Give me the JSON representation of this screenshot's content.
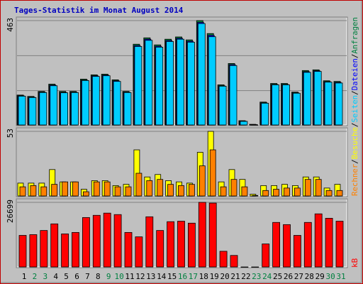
{
  "chart_data": [
    {
      "type": "bar",
      "title": "Tages-Statistik im Monat August 2014",
      "categories": [
        "1",
        "2",
        "3",
        "4",
        "5",
        "6",
        "7",
        "8",
        "9",
        "10",
        "11",
        "12",
        "13",
        "14",
        "15",
        "16",
        "17",
        "18",
        "19",
        "20",
        "21",
        "22",
        "23",
        "24",
        "25",
        "26",
        "27",
        "28",
        "29",
        "30",
        "31"
      ],
      "category_colors": [
        "#000000",
        "#008040",
        "#008040",
        "#000000",
        "#000000",
        "#000000",
        "#000000",
        "#000000",
        "#008040",
        "#008040",
        "#000000",
        "#000000",
        "#000000",
        "#000000",
        "#000000",
        "#008040",
        "#008040",
        "#000000",
        "#000000",
        "#000000",
        "#000000",
        "#000000",
        "#008040",
        "#008040",
        "#000000",
        "#000000",
        "#000000",
        "#000000",
        "#000000",
        "#008040",
        "#008040"
      ],
      "legend_separator": "/",
      "ylim": [
        0,
        463
      ],
      "yticks": [
        463
      ],
      "series": [
        {
          "name": "Anfragen",
          "color": "#008040",
          "values": [
            135,
            129,
            151,
            183,
            151,
            151,
            205,
            224,
            227,
            202,
            151,
            359,
            387,
            356,
            381,
            391,
            378,
            463,
            406,
            180,
            274,
            22,
            6,
            104,
            186,
            186,
            148,
            243,
            246,
            198,
            195
          ]
        },
        {
          "name": "Dateien",
          "color": "#0000ff",
          "values": [
            132,
            126,
            148,
            179,
            147,
            148,
            201,
            220,
            223,
            198,
            148,
            353,
            381,
            350,
            375,
            385,
            372,
            455,
            398,
            176,
            269,
            20,
            5,
            101,
            182,
            182,
            145,
            238,
            242,
            194,
            191
          ]
        },
        {
          "name": "Seiten",
          "color": "#00ccff",
          "values": [
            130,
            124,
            146,
            176,
            145,
            146,
            199,
            217,
            220,
            195,
            146,
            349,
            376,
            346,
            371,
            381,
            368,
            450,
            392,
            174,
            265,
            19,
            4,
            99,
            180,
            180,
            143,
            235,
            239,
            192,
            188
          ]
        }
      ]
    },
    {
      "type": "bar",
      "ylim": [
        0,
        53
      ],
      "yticks": [
        53
      ],
      "series": [
        {
          "name": "Besuche",
          "color": "#ffff00",
          "values": [
            11,
            11,
            11,
            22,
            12,
            12,
            6,
            13,
            13,
            9,
            10,
            38,
            16,
            18,
            13,
            12,
            11,
            36,
            53,
            12,
            22,
            14,
            2,
            9,
            9,
            10,
            9,
            16,
            16,
            7,
            10
          ]
        },
        {
          "name": "Rechner",
          "color": "#ff8000",
          "values": [
            8,
            9,
            8,
            10,
            12,
            12,
            4,
            12,
            12,
            8,
            8,
            19,
            13,
            14,
            10,
            9,
            10,
            25,
            38,
            8,
            14,
            8,
            1,
            5,
            6,
            7,
            7,
            14,
            14,
            5,
            5
          ]
        }
      ]
    },
    {
      "type": "bar",
      "ylim": [
        0,
        26699
      ],
      "yticks": [
        26699
      ],
      "series": [
        {
          "name": "kB",
          "color": "#ff0000",
          "values": [
            13200,
            13500,
            15200,
            17900,
            13800,
            14400,
            20500,
            21400,
            22300,
            21700,
            14400,
            12600,
            20800,
            15200,
            18800,
            19000,
            18200,
            26699,
            26400,
            6700,
            5000,
            300,
            300,
            9700,
            18500,
            17600,
            13200,
            18500,
            22000,
            20200,
            19000
          ]
        }
      ]
    }
  ]
}
